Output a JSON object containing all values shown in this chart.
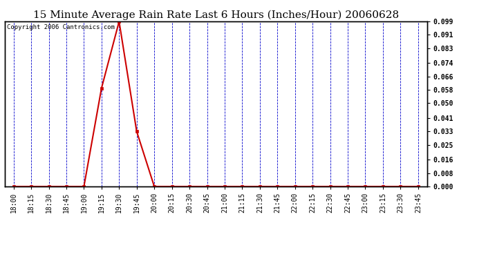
{
  "title": "15 Minute Average Rain Rate Last 6 Hours (Inches/Hour) 20060628",
  "copyright": "Copyright 2006 Cantronics.com",
  "fig_bg_color": "#ffffff",
  "plot_bg_color": "#ffffff",
  "line_color": "#cc0000",
  "marker_color": "#cc0000",
  "grid_color": "#0000cc",
  "x_labels": [
    "18:00",
    "18:15",
    "18:30",
    "18:45",
    "19:00",
    "19:15",
    "19:30",
    "19:45",
    "20:00",
    "20:15",
    "20:30",
    "20:45",
    "21:00",
    "21:15",
    "21:30",
    "21:45",
    "22:00",
    "22:15",
    "22:30",
    "22:45",
    "23:00",
    "23:15",
    "23:30",
    "23:45"
  ],
  "y_values": [
    0.0,
    0.0,
    0.0,
    0.0,
    0.0,
    0.059,
    0.099,
    0.033,
    0.0,
    0.0,
    0.0,
    0.0,
    0.0,
    0.0,
    0.0,
    0.0,
    0.0,
    0.0,
    0.0,
    0.0,
    0.0,
    0.0,
    0.0,
    0.0
  ],
  "ylim": [
    0.0,
    0.099
  ],
  "yticks": [
    0.0,
    0.008,
    0.016,
    0.025,
    0.033,
    0.041,
    0.05,
    0.058,
    0.066,
    0.074,
    0.083,
    0.091,
    0.099
  ],
  "title_fontsize": 11,
  "copyright_fontsize": 6.5,
  "tick_fontsize": 7,
  "border_color": "#000000",
  "marker_size": 3
}
